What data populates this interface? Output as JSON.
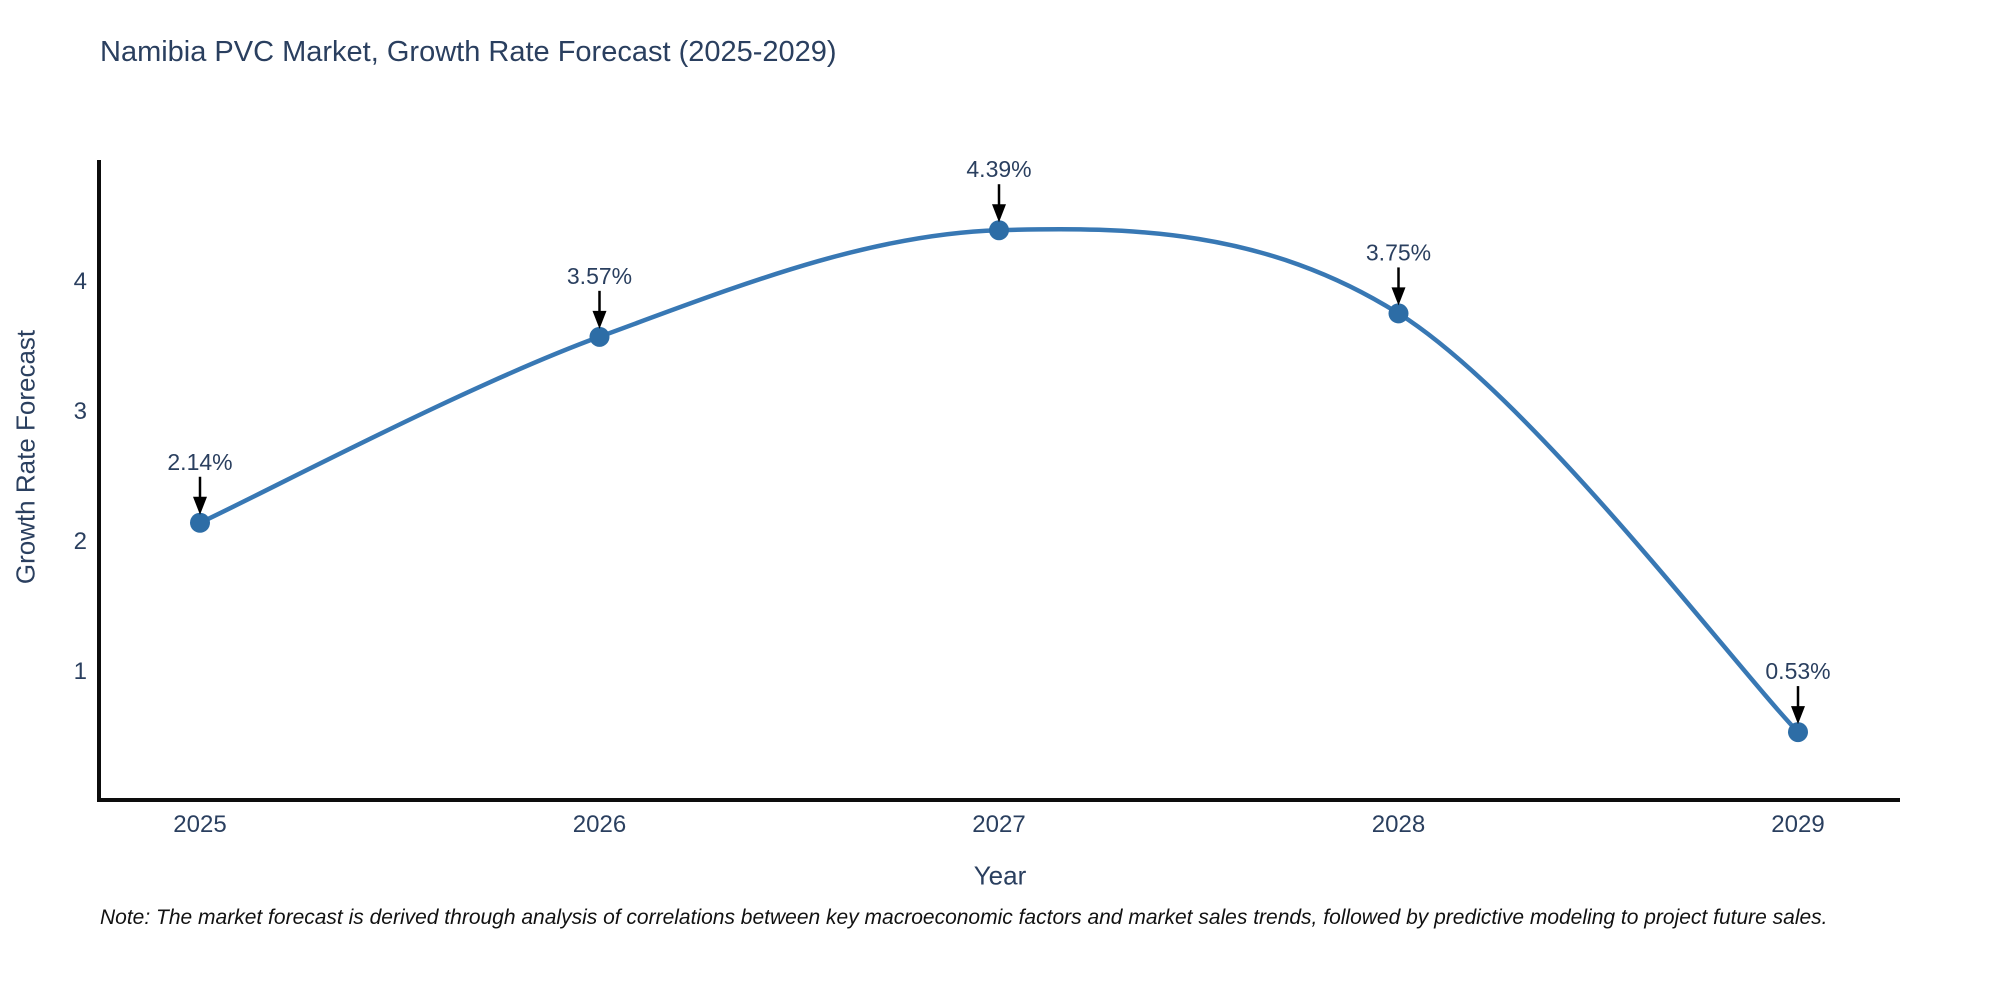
{
  "title": "Namibia PVC Market, Growth Rate Forecast (2025-2029)",
  "note": "Note: The market forecast is derived through analysis of correlations between key macroeconomic factors and market sales trends, followed by predictive modeling to project future sales.",
  "chart_data": {
    "type": "line",
    "title": "Namibia PVC Market, Growth Rate Forecast (2025-2029)",
    "xlabel": "Year",
    "ylabel": "Growth Rate Forecast",
    "x": [
      2025,
      2026,
      2027,
      2028,
      2029
    ],
    "x_tick_labels": [
      "2025",
      "2026",
      "2027",
      "2028",
      "2029"
    ],
    "y": [
      2.14,
      3.57,
      4.39,
      3.75,
      0.53
    ],
    "point_labels": [
      "2.14%",
      "3.57%",
      "4.39%",
      "3.75%",
      "0.53%"
    ],
    "y_ticks": [
      1,
      2,
      3,
      4
    ],
    "y_tick_labels": [
      "1",
      "2",
      "3",
      "4"
    ],
    "ylim": [
      0,
      4.93
    ],
    "line_shape": "spline",
    "grid": false,
    "legend": "none",
    "colors": {
      "line": "#3878b4",
      "marker": "#2d6da6",
      "arrow": "#000000",
      "axis": "#0d0d0d",
      "text": "#2a3f5f",
      "note_text": "#111111",
      "background": "#ffffff"
    }
  }
}
